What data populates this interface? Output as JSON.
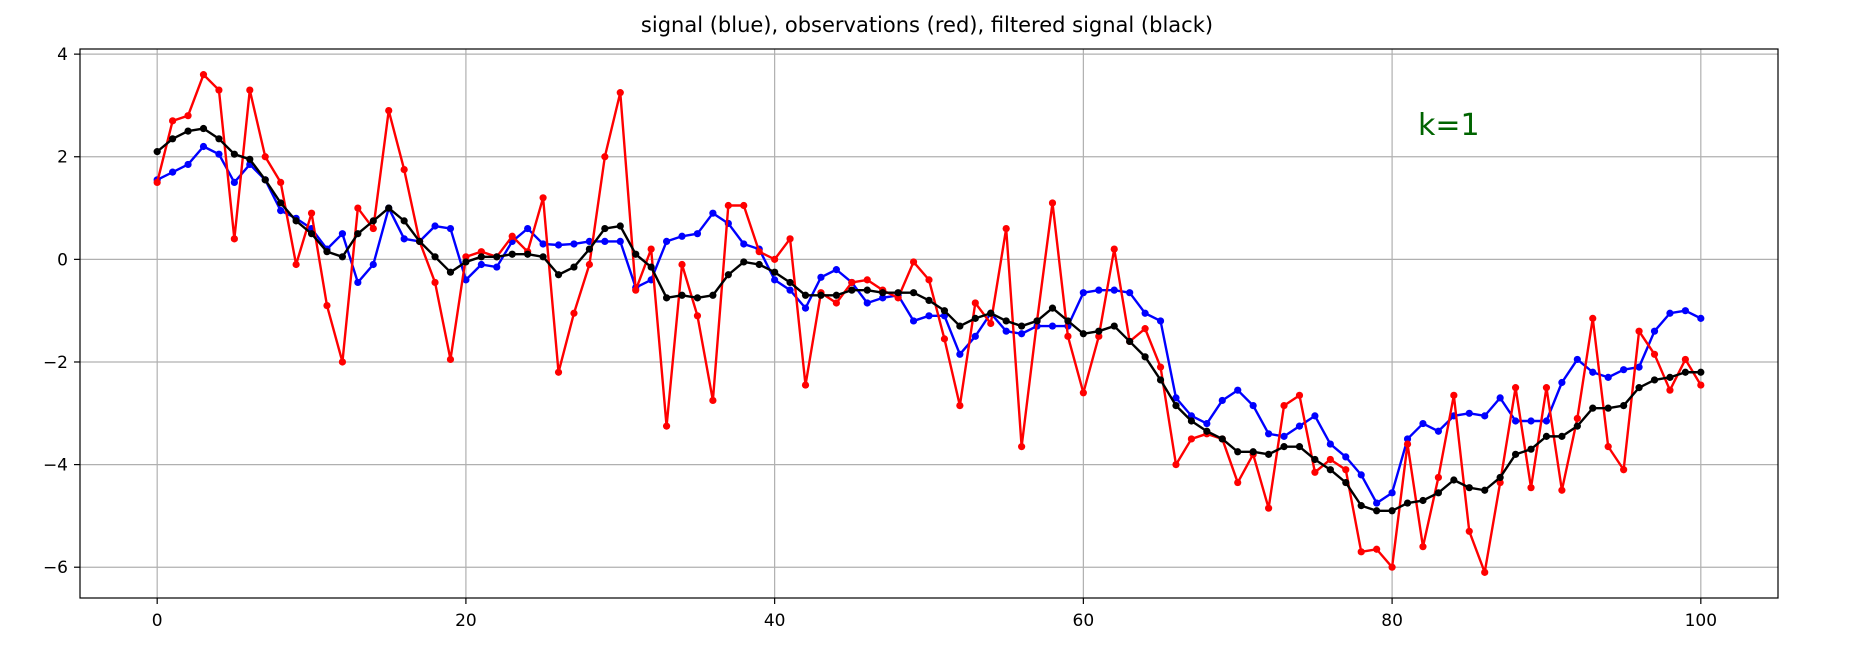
{
  "chart_data": {
    "type": "line",
    "title": "signal (blue), observations (red),  filtered signal (black)",
    "annotation": "k=1",
    "annotation_color": "#006400",
    "xlim": [
      -5,
      105
    ],
    "ylim": [
      -6.6,
      4.1
    ],
    "x_ticks": [
      0,
      20,
      40,
      60,
      80,
      100
    ],
    "y_ticks": [
      4,
      2,
      0,
      -2,
      -4,
      -6
    ],
    "y_tick_labels": [
      "4",
      "2",
      "0",
      "−2",
      "−4",
      "−6"
    ],
    "grid": true,
    "x": [
      0,
      1,
      2,
      3,
      4,
      5,
      6,
      7,
      8,
      9,
      10,
      11,
      12,
      13,
      14,
      15,
      16,
      17,
      18,
      19,
      20,
      21,
      22,
      23,
      24,
      25,
      26,
      27,
      28,
      29,
      30,
      31,
      32,
      33,
      34,
      35,
      36,
      37,
      38,
      39,
      40,
      41,
      42,
      43,
      44,
      45,
      46,
      47,
      48,
      49,
      50,
      51,
      52,
      53,
      54,
      55,
      56,
      57,
      58,
      59,
      60,
      61,
      62,
      63,
      64,
      65,
      66,
      67,
      68,
      69,
      70,
      71,
      72,
      73,
      74,
      75,
      76,
      77,
      78,
      79,
      80,
      81,
      82,
      83,
      84,
      85,
      86,
      87,
      88,
      89,
      90,
      91,
      92,
      93,
      94,
      95,
      96,
      97,
      98,
      99,
      100
    ],
    "series": [
      {
        "color": "#0000ff",
        "values": [
          1.55,
          1.7,
          1.85,
          2.2,
          2.05,
          1.5,
          1.85,
          1.55,
          0.95,
          0.8,
          0.6,
          0.2,
          0.5,
          -0.45,
          -0.1,
          1.0,
          0.4,
          0.35,
          0.65,
          0.6,
          -0.4,
          -0.1,
          -0.15,
          0.35,
          0.6,
          0.3,
          0.28,
          0.3,
          0.35,
          0.35,
          0.35,
          -0.55,
          -0.4,
          0.35,
          0.45,
          0.5,
          0.9,
          0.7,
          0.3,
          0.2,
          -0.4,
          -0.6,
          -0.95,
          -0.35,
          -0.2,
          -0.45,
          -0.85,
          -0.75,
          -0.7,
          -1.2,
          -1.1,
          -1.1,
          -1.85,
          -1.5,
          -1.05,
          -1.4,
          -1.45,
          -1.3,
          -1.3,
          -1.3,
          -0.65,
          -0.6,
          -0.6,
          -0.65,
          -1.05,
          -1.2,
          -2.7,
          -3.05,
          -3.2,
          -2.75,
          -2.55,
          -2.85,
          -3.4,
          -3.45,
          -3.25,
          -3.05,
          -3.6,
          -3.85,
          -4.2,
          -4.75,
          -4.55,
          -3.5,
          -3.2,
          -3.35,
          -3.05,
          -3.0,
          -3.05,
          -2.7,
          -3.15,
          -3.15,
          -3.15,
          -2.4,
          -1.95,
          -2.2,
          -2.3,
          -2.15,
          -2.1,
          -1.4,
          -1.05,
          -1.0,
          -1.15
        ]
      },
      {
        "color": "#ff0000",
        "values": [
          1.5,
          2.7,
          2.8,
          3.6,
          3.3,
          0.4,
          3.3,
          2.0,
          1.5,
          -0.1,
          0.9,
          -0.9,
          -2.0,
          1.0,
          0.6,
          2.9,
          1.75,
          0.35,
          -0.45,
          -1.95,
          0.05,
          0.15,
          0.05,
          0.45,
          0.15,
          1.2,
          -2.2,
          -1.05,
          -0.1,
          2.0,
          3.25,
          -0.6,
          0.2,
          -3.25,
          -0.1,
          -1.1,
          -2.75,
          1.05,
          1.05,
          0.15,
          0.0,
          0.4,
          -2.45,
          -0.65,
          -0.85,
          -0.45,
          -0.4,
          -0.6,
          -0.75,
          -0.05,
          -0.4,
          -1.55,
          -2.85,
          -0.85,
          -1.25,
          0.6,
          -3.65,
          -1.2,
          1.1,
          -1.5,
          -2.6,
          -1.5,
          0.2,
          -1.6,
          -1.35,
          -2.1,
          -4.0,
          -3.5,
          -3.4,
          -3.5,
          -4.35,
          -3.8,
          -4.85,
          -2.85,
          -2.65,
          -4.15,
          -3.9,
          -4.1,
          -5.7,
          -5.65,
          -6.0,
          -3.6,
          -5.6,
          -4.25,
          -2.65,
          -5.3,
          -6.1,
          -4.35,
          -2.5,
          -4.45,
          -2.5,
          -4.5,
          -3.1,
          -1.15,
          -3.65,
          -4.1,
          -1.4,
          -1.85,
          -2.55,
          -1.95,
          -2.45
        ]
      },
      {
        "color": "#000000",
        "values": [
          2.1,
          2.35,
          2.5,
          2.55,
          2.35,
          2.05,
          1.95,
          1.55,
          1.1,
          0.75,
          0.5,
          0.15,
          0.05,
          0.5,
          0.75,
          1.0,
          0.75,
          0.35,
          0.05,
          -0.25,
          -0.05,
          0.05,
          0.05,
          0.1,
          0.1,
          0.05,
          -0.3,
          -0.15,
          0.2,
          0.6,
          0.65,
          0.1,
          -0.15,
          -0.75,
          -0.7,
          -0.75,
          -0.7,
          -0.3,
          -0.05,
          -0.1,
          -0.25,
          -0.45,
          -0.7,
          -0.7,
          -0.7,
          -0.6,
          -0.6,
          -0.65,
          -0.65,
          -0.65,
          -0.8,
          -1.0,
          -1.3,
          -1.15,
          -1.05,
          -1.2,
          -1.3,
          -1.2,
          -0.95,
          -1.2,
          -1.45,
          -1.4,
          -1.3,
          -1.6,
          -1.9,
          -2.35,
          -2.85,
          -3.15,
          -3.35,
          -3.5,
          -3.75,
          -3.75,
          -3.8,
          -3.65,
          -3.65,
          -3.9,
          -4.1,
          -4.35,
          -4.8,
          -4.9,
          -4.9,
          -4.75,
          -4.7,
          -4.55,
          -4.3,
          -4.45,
          -4.5,
          -4.25,
          -3.8,
          -3.7,
          -3.45,
          -3.45,
          -3.25,
          -2.9,
          -2.9,
          -2.85,
          -2.5,
          -2.35,
          -2.3,
          -2.2,
          -2.2
        ]
      }
    ]
  }
}
